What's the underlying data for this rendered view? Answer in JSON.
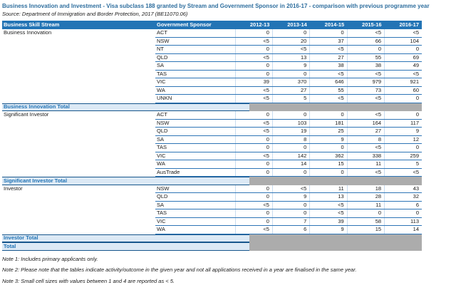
{
  "title": "Business Innovation and Investment - Visa subclass 188 granted by Stream and Government Sponsor in 2016-17 - comparison with previous programme year",
  "source": "Source: Department of Immigration and Border Protection, 2017 (BE11070.06)",
  "table": {
    "headers": [
      "Business Skill Stream",
      "Government Sponsor",
      "2012-13",
      "2013-14",
      "2014-15",
      "2015-16",
      "2016-17"
    ],
    "groups": [
      {
        "stream": "Business Innovation",
        "total_label": "Business Innovation Total",
        "rows": [
          {
            "sponsor": "ACT",
            "values": [
              "0",
              "0",
              "0",
              "<5",
              "<5"
            ]
          },
          {
            "sponsor": "NSW",
            "values": [
              "<5",
              "20",
              "37",
              "66",
              "104"
            ]
          },
          {
            "sponsor": "NT",
            "values": [
              "0",
              "<5",
              "<5",
              "0",
              "0"
            ]
          },
          {
            "sponsor": "QLD",
            "values": [
              "<5",
              "13",
              "27",
              "55",
              "69"
            ]
          },
          {
            "sponsor": "SA",
            "values": [
              "0",
              "9",
              "38",
              "38",
              "49"
            ]
          },
          {
            "sponsor": "TAS",
            "values": [
              "0",
              "0",
              "<5",
              "<5",
              "<5"
            ]
          },
          {
            "sponsor": "VIC",
            "values": [
              "39",
              "370",
              "646",
              "979",
              "921"
            ]
          },
          {
            "sponsor": "WA",
            "values": [
              "<5",
              "27",
              "55",
              "73",
              "60"
            ]
          },
          {
            "sponsor": "UNKN",
            "values": [
              "<5",
              "5",
              "<5",
              "<5",
              "0"
            ]
          }
        ]
      },
      {
        "stream": "Significant Investor",
        "total_label": "Significant Investor Total",
        "rows": [
          {
            "sponsor": "ACT",
            "values": [
              "0",
              "0",
              "0",
              "<5",
              "0"
            ]
          },
          {
            "sponsor": "NSW",
            "values": [
              "<5",
              "103",
              "181",
              "164",
              "117"
            ]
          },
          {
            "sponsor": "QLD",
            "values": [
              "<5",
              "19",
              "25",
              "27",
              "9"
            ]
          },
          {
            "sponsor": "SA",
            "values": [
              "0",
              "8",
              "9",
              "8",
              "12"
            ]
          },
          {
            "sponsor": "TAS",
            "values": [
              "0",
              "0",
              "0",
              "<5",
              "0"
            ]
          },
          {
            "sponsor": "VIC",
            "values": [
              "<5",
              "142",
              "362",
              "338",
              "259"
            ]
          },
          {
            "sponsor": "WA",
            "values": [
              "0",
              "14",
              "15",
              "11",
              "5"
            ]
          },
          {
            "sponsor": "AusTrade",
            "values": [
              "0",
              "0",
              "0",
              "<5",
              "<5"
            ]
          }
        ]
      },
      {
        "stream": "Investor",
        "total_label": "Investor Total",
        "rows": [
          {
            "sponsor": "NSW",
            "values": [
              "0",
              "<5",
              "11",
              "18",
              "43"
            ]
          },
          {
            "sponsor": "QLD",
            "values": [
              "0",
              "9",
              "13",
              "28",
              "32"
            ]
          },
          {
            "sponsor": "SA",
            "values": [
              "<5",
              "0",
              "<5",
              "11",
              "6"
            ]
          },
          {
            "sponsor": "TAS",
            "values": [
              "0",
              "0",
              "<5",
              "0",
              "0"
            ]
          },
          {
            "sponsor": "VIC",
            "values": [
              "0",
              "7",
              "39",
              "58",
              "113"
            ]
          },
          {
            "sponsor": "WA",
            "values": [
              "<5",
              "6",
              "9",
              "15",
              "14"
            ]
          }
        ]
      }
    ],
    "grand_total_label": "Total"
  },
  "notes": [
    "Note 1: Includes primary applicants only.",
    "Note 2: Please note that the tables indicate activity/outcome in the given year and not all applications received in a year are finalised in the same year.",
    "Note 3: Small cell sizes with values between 1 and 4 are reported as < 5."
  ],
  "colors": {
    "header_bg": "#2374B5",
    "row_border": "#2E75B6",
    "column_divider": "#C9DCEF",
    "total_row_bg": "#DCE9F5",
    "total_row_border": "#17568C",
    "suppressed_total_gray": "#ACACAC",
    "title_text": "#2E6E9E"
  }
}
